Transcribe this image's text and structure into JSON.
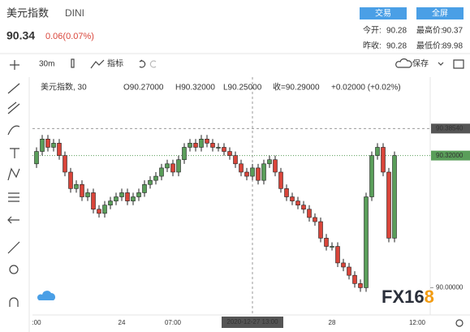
{
  "header": {
    "name": "美元指数",
    "code": "DINI",
    "price": "90.34",
    "change": "0.06(0.07%)",
    "buttons": [
      "交易",
      "全屏"
    ],
    "stats": [
      [
        "今开:",
        "90.28",
        "最高价:",
        "90.37"
      ],
      [
        "昨收:",
        "90.28",
        "最低价:",
        "89.98"
      ]
    ]
  },
  "toolbar": {
    "interval": "30m",
    "indicators": "指标",
    "save": "保存"
  },
  "legend": {
    "symbol": "美元指数, 30",
    "open": "O90.27000",
    "high": "H90.32000",
    "low": "L90.25000",
    "close": "收=90.29000",
    "change": "+0.02000 (+0.02%)"
  },
  "logo": [
    "FX16",
    "8"
  ],
  "chart_data": {
    "type": "candlestick",
    "categories": [
      ":00",
      null,
      null,
      null,
      null,
      null,
      null,
      null,
      null,
      null,
      null,
      null,
      null,
      null,
      null,
      "24",
      null,
      null,
      null,
      null,
      null,
      null,
      null,
      null,
      "07:00",
      null,
      null,
      null,
      null,
      null,
      null,
      null,
      null,
      null,
      null,
      null,
      null,
      null,
      null,
      null,
      null,
      null,
      null,
      null,
      null,
      null,
      null,
      null,
      null,
      null,
      null,
      null,
      "28",
      null,
      null,
      null,
      null,
      null,
      null,
      null,
      null,
      null,
      null,
      null,
      null,
      null,
      null,
      "12:00"
    ],
    "open": [
      90.3,
      90.33,
      90.36,
      90.34,
      90.35,
      90.32,
      90.28,
      90.24,
      90.25,
      90.22,
      90.23,
      90.19,
      90.18,
      90.2,
      90.21,
      90.22,
      90.23,
      90.21,
      90.22,
      90.23,
      90.25,
      90.26,
      90.27,
      90.29,
      90.3,
      90.28,
      90.31,
      90.34,
      90.35,
      90.34,
      90.36,
      90.35,
      90.34,
      90.34,
      90.33,
      90.32,
      90.3,
      90.28,
      90.27,
      90.29,
      90.26,
      90.3,
      90.31,
      90.28,
      90.24,
      90.22,
      90.21,
      90.2,
      90.19,
      90.17,
      90.16,
      90.12,
      90.1,
      90.1,
      90.06,
      90.05,
      90.03,
      90.01,
      90.0,
      90.22,
      90.32,
      90.34,
      90.28,
      90.12,
      null,
      null,
      null,
      null
    ],
    "high": [
      90.34,
      90.37,
      90.37,
      90.36,
      90.36,
      90.33,
      90.29,
      90.26,
      90.26,
      90.24,
      90.24,
      90.2,
      90.21,
      90.22,
      90.23,
      90.24,
      90.24,
      90.23,
      90.24,
      90.26,
      90.27,
      90.28,
      90.3,
      90.31,
      90.31,
      90.32,
      90.35,
      90.36,
      90.36,
      90.37,
      90.37,
      90.36,
      90.35,
      90.35,
      90.34,
      90.33,
      90.31,
      90.29,
      90.3,
      90.3,
      90.31,
      90.32,
      90.32,
      90.29,
      90.25,
      90.23,
      90.22,
      90.21,
      90.2,
      90.18,
      90.17,
      90.13,
      90.11,
      90.11,
      90.07,
      90.06,
      90.04,
      90.02,
      90.23,
      90.33,
      90.35,
      90.35,
      90.29,
      90.33,
      null,
      null,
      null,
      null
    ],
    "low": [
      90.29,
      90.32,
      90.33,
      90.33,
      90.31,
      90.27,
      90.23,
      90.23,
      90.21,
      90.21,
      90.18,
      90.17,
      90.17,
      90.19,
      90.2,
      90.21,
      90.2,
      90.2,
      90.21,
      90.22,
      90.24,
      90.25,
      90.26,
      90.28,
      90.27,
      90.27,
      90.3,
      90.33,
      90.33,
      90.33,
      90.34,
      90.33,
      90.33,
      90.32,
      90.31,
      90.29,
      90.27,
      90.26,
      90.26,
      90.25,
      90.25,
      90.29,
      90.27,
      90.23,
      90.21,
      90.2,
      90.19,
      90.18,
      90.16,
      90.15,
      90.11,
      90.09,
      90.09,
      90.05,
      90.04,
      90.02,
      90.0,
      89.99,
      89.99,
      90.21,
      90.31,
      90.27,
      90.11,
      90.11,
      null,
      null,
      null,
      null
    ],
    "close": [
      90.33,
      90.36,
      90.34,
      90.35,
      90.32,
      90.28,
      90.24,
      90.25,
      90.22,
      90.23,
      90.19,
      90.18,
      90.2,
      90.21,
      90.22,
      90.23,
      90.21,
      90.22,
      90.23,
      90.25,
      90.26,
      90.27,
      90.29,
      90.3,
      90.28,
      90.31,
      90.34,
      90.35,
      90.34,
      90.36,
      90.35,
      90.34,
      90.34,
      90.33,
      90.32,
      90.3,
      90.28,
      90.27,
      90.29,
      90.26,
      90.3,
      90.31,
      90.28,
      90.24,
      90.22,
      90.21,
      90.2,
      90.19,
      90.17,
      90.16,
      90.12,
      90.1,
      90.1,
      90.06,
      90.05,
      90.03,
      90.01,
      90.0,
      90.22,
      90.32,
      90.34,
      90.28,
      90.12,
      90.32,
      null,
      null,
      null,
      null
    ],
    "up_color": "#5a9e5a",
    "down_color": "#d9453a",
    "ylim": [
      89.934,
      90.51
    ],
    "yticks": [
      {
        "value": 90,
        "label": "90.00000"
      }
    ],
    "crosshair": {
      "price": {
        "value": 90.3854,
        "label": "90.38540"
      },
      "time_label": "2020-12-27  13:00"
    },
    "last_price": {
      "value": 90.32,
      "label": "90.32000"
    }
  }
}
